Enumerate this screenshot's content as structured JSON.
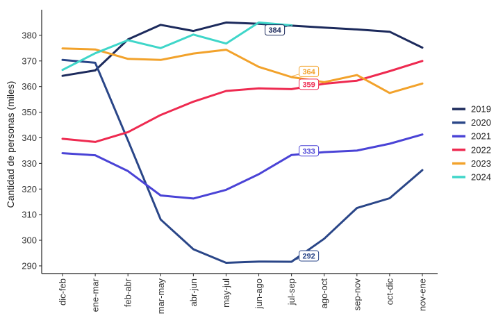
{
  "chart_data": {
    "type": "line",
    "ylabel": "Cantidad de personas (miles)",
    "xlabel": "",
    "ylim": [
      287,
      390
    ],
    "yticks": [
      290,
      300,
      310,
      320,
      330,
      340,
      350,
      360,
      370,
      380
    ],
    "categories": [
      "dic-feb",
      "ene-mar",
      "feb-abr",
      "mar-may",
      "abr-jun",
      "may-jul",
      "jun-ago",
      "jul-sep",
      "ago-oct",
      "sep-nov",
      "oct-dic",
      "nov-ene"
    ],
    "grid": false,
    "legend_position": "right",
    "series": [
      {
        "name": "2019",
        "color": "#1c2a5c",
        "values": [
          364.2,
          366.3,
          378.4,
          384.1,
          381.7,
          385.0,
          384.5,
          383.8,
          383.0,
          382.3,
          381.4,
          375.2
        ]
      },
      {
        "name": "2020",
        "color": "#2a4688",
        "values": [
          370.4,
          369.3,
          339.0,
          308.1,
          296.5,
          291.2,
          291.7,
          291.6,
          300.6,
          312.6,
          316.4,
          327.4
        ]
      },
      {
        "name": "2021",
        "color": "#4a43d6",
        "values": [
          334.0,
          333.2,
          327.0,
          317.5,
          316.3,
          319.7,
          325.8,
          333.3,
          334.4,
          335.0,
          337.7,
          341.3
        ]
      },
      {
        "name": "2022",
        "color": "#ee2a50",
        "values": [
          339.6,
          338.4,
          342.2,
          348.9,
          354.1,
          358.3,
          359.3,
          359.0,
          361.1,
          362.3,
          366.0,
          370.0
        ]
      },
      {
        "name": "2023",
        "color": "#f2a22b",
        "values": [
          374.9,
          374.5,
          370.8,
          370.4,
          372.9,
          374.4,
          367.7,
          363.7,
          361.7,
          364.5,
          357.5,
          361.2
        ]
      },
      {
        "name": "2024",
        "color": "#3fd6c9",
        "values": [
          366.5,
          373.0,
          378.1,
          375.0,
          380.3,
          376.8,
          385.0,
          383.9,
          null,
          null,
          null,
          null
        ]
      }
    ],
    "annotations": [
      {
        "text": "384",
        "series": "2024",
        "category": "jul-sep",
        "value": 384,
        "color": "#1c2a5c"
      },
      {
        "text": "364",
        "series": "2023",
        "category": "jul-sep",
        "value": 364,
        "color": "#f2a22b"
      },
      {
        "text": "359",
        "series": "2022",
        "category": "jul-sep",
        "value": 359,
        "color": "#ee2a50"
      },
      {
        "text": "333",
        "series": "2021",
        "category": "jul-sep",
        "value": 333,
        "color": "#4a43d6"
      },
      {
        "text": "292",
        "series": "2020",
        "category": "jul-sep",
        "value": 292,
        "color": "#2a4688"
      }
    ]
  }
}
